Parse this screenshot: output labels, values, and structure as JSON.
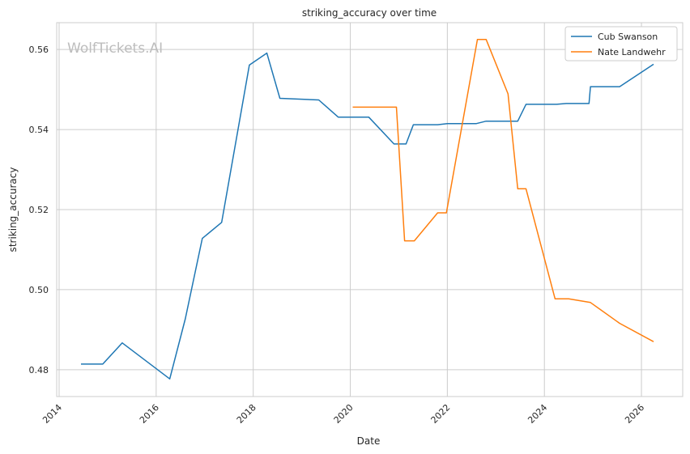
{
  "watermark": "WolfTickets.AI",
  "chart_data": {
    "type": "line",
    "title": "striking_accuracy over time",
    "xlabel": "Date",
    "ylabel": "striking_accuracy",
    "x_ticks": [
      "2014",
      "2016",
      "2018",
      "2020",
      "2022",
      "2024",
      "2026"
    ],
    "y_ticks": [
      "0.48",
      "0.50",
      "0.52",
      "0.54",
      "0.56"
    ],
    "xlim": [
      2013.95,
      2026.85
    ],
    "ylim": [
      0.4733,
      0.5667
    ],
    "grid": true,
    "legend_position": "top-right",
    "series": [
      {
        "name": "Cub Swanson",
        "color": "#1f77b4",
        "points": [
          [
            2014.45,
            0.4814
          ],
          [
            2014.9,
            0.4814
          ],
          [
            2015.3,
            0.4867
          ],
          [
            2016.28,
            0.4777
          ],
          [
            2016.6,
            0.4927
          ],
          [
            2016.95,
            0.5128
          ],
          [
            2017.35,
            0.5168
          ],
          [
            2017.92,
            0.5561
          ],
          [
            2018.28,
            0.5591
          ],
          [
            2018.55,
            0.5478
          ],
          [
            2019.35,
            0.5474
          ],
          [
            2019.75,
            0.5431
          ],
          [
            2020.38,
            0.5431
          ],
          [
            2020.9,
            0.5364
          ],
          [
            2021.15,
            0.5364
          ],
          [
            2021.3,
            0.5412
          ],
          [
            2021.8,
            0.5412
          ],
          [
            2022.0,
            0.5415
          ],
          [
            2022.6,
            0.5415
          ],
          [
            2022.8,
            0.5421
          ],
          [
            2023.3,
            0.5421
          ],
          [
            2023.45,
            0.5421
          ],
          [
            2023.62,
            0.5463
          ],
          [
            2024.25,
            0.5463
          ],
          [
            2024.45,
            0.5465
          ],
          [
            2024.92,
            0.5465
          ],
          [
            2024.95,
            0.5507
          ],
          [
            2025.55,
            0.5507
          ],
          [
            2026.25,
            0.5563
          ]
        ]
      },
      {
        "name": "Nate Landwehr",
        "color": "#ff7f0e",
        "points": [
          [
            2020.05,
            0.5456
          ],
          [
            2020.95,
            0.5456
          ],
          [
            2021.12,
            0.5122
          ],
          [
            2021.32,
            0.5122
          ],
          [
            2021.8,
            0.5192
          ],
          [
            2021.98,
            0.5192
          ],
          [
            2022.62,
            0.5625
          ],
          [
            2022.8,
            0.5625
          ],
          [
            2023.25,
            0.5489
          ],
          [
            2023.45,
            0.5252
          ],
          [
            2023.62,
            0.5252
          ],
          [
            2024.22,
            0.4977
          ],
          [
            2024.5,
            0.4977
          ],
          [
            2024.95,
            0.4968
          ],
          [
            2025.55,
            0.4916
          ],
          [
            2026.25,
            0.487
          ]
        ]
      }
    ]
  }
}
